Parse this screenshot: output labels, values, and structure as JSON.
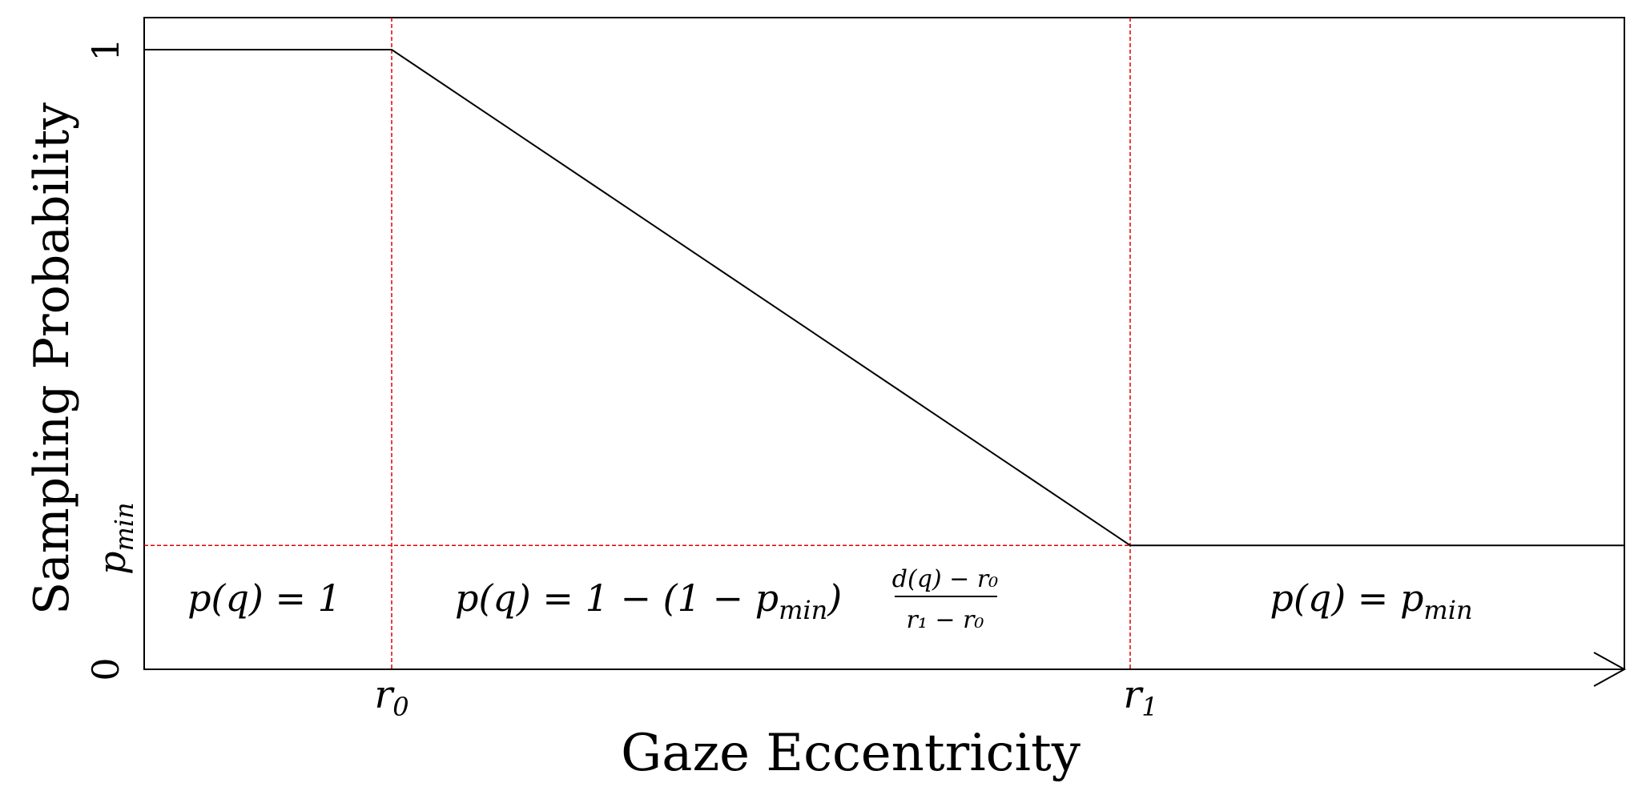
{
  "axes": {
    "xlabel": "Gaze Eccentricity",
    "ylabel": "Sampling Probability",
    "x_ticks": {
      "r0": {
        "base": "r",
        "sub": "0"
      },
      "r1": {
        "base": "r",
        "sub": "1"
      }
    },
    "y_ticks": {
      "top": "1",
      "bottom": "0",
      "pmin": {
        "base": "p",
        "sub": "min"
      }
    }
  },
  "chart_data": {
    "type": "line",
    "series": [
      {
        "x": [
          0,
          1,
          4,
          6
        ],
        "y": [
          1,
          1,
          0.2,
          0.2
        ]
      }
    ],
    "xlim": [
      0,
      6
    ],
    "ylim": [
      0,
      1.05
    ],
    "reference_lines": {
      "vertical_x": [
        1,
        4
      ],
      "horizontal_y": [
        0.2
      ]
    }
  },
  "region_labels": {
    "left": "p(q) = 1",
    "middle_prefix": "p(q) = 1 − (1 − p",
    "middle_prefix_sub": "min",
    "middle_paren_close": ")",
    "middle_numerator": "d(q) − r₀",
    "middle_denominator": "r₁ − r₀",
    "right_prefix": "p(q) = p",
    "right_sub": "min"
  },
  "colors": {
    "curve": "#000000",
    "reference": "#e00000",
    "axis": "#000000"
  }
}
